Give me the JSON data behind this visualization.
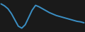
{
  "x": [
    0,
    1,
    2,
    3,
    4,
    5,
    6,
    7,
    8,
    9,
    10,
    11,
    12,
    13,
    14,
    15,
    16,
    17,
    18,
    19,
    20,
    21,
    22,
    23,
    24
  ],
  "y": [
    88,
    84,
    78,
    68,
    55,
    42,
    38,
    45,
    60,
    75,
    85,
    82,
    78,
    74,
    70,
    67,
    64,
    62,
    60,
    58,
    56,
    54,
    52,
    51,
    49
  ],
  "line_color": "#3b8fc4",
  "line_width": 1.4,
  "bg_color": "#1a1a1a"
}
